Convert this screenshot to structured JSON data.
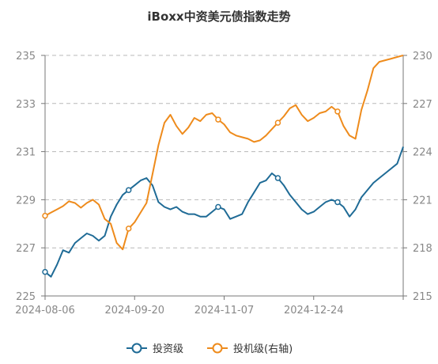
{
  "chart_data": {
    "type": "line",
    "title": "iBoxx中资美元债指数走势",
    "x_tick_labels": [
      "2024-08-06",
      "2024-09-20",
      "2024-11-07",
      "2024-12-24"
    ],
    "y_left_ticks": [
      225,
      227,
      229,
      231,
      233,
      235
    ],
    "y_right_ticks": [
      215,
      218,
      221,
      224,
      227,
      230
    ],
    "ylim_left": [
      225,
      235
    ],
    "ylim_right": [
      215,
      230
    ],
    "grid": "horizontal dashed",
    "legend_position": "bottom",
    "series": [
      {
        "name": "投资级",
        "axis": "left",
        "color": "#1f6b96",
        "x": [
          0,
          2,
          4,
          6,
          8,
          10,
          12,
          14,
          16,
          18,
          20,
          22,
          24,
          26,
          28,
          30,
          32,
          34,
          36,
          38,
          40,
          42,
          44,
          46,
          48,
          50,
          52,
          54,
          56,
          58,
          60,
          62,
          64,
          66,
          68,
          70,
          72,
          74,
          76,
          78,
          80,
          82,
          84,
          86,
          88,
          90,
          92,
          94,
          96,
          98,
          100,
          102,
          104,
          106,
          108,
          110,
          112,
          114,
          116,
          118,
          120
        ],
        "values": [
          226.0,
          225.8,
          226.3,
          226.9,
          226.8,
          227.2,
          227.4,
          227.6,
          227.5,
          227.3,
          227.5,
          228.3,
          228.8,
          229.2,
          229.4,
          229.6,
          229.8,
          229.9,
          229.6,
          228.9,
          228.7,
          228.6,
          228.7,
          228.5,
          228.4,
          228.4,
          228.3,
          228.3,
          228.5,
          228.7,
          228.6,
          228.2,
          228.3,
          228.4,
          228.9,
          229.3,
          229.7,
          229.8,
          230.1,
          229.9,
          229.6,
          229.2,
          228.9,
          228.6,
          228.4,
          228.5,
          228.7,
          228.9,
          229.0,
          228.9,
          228.7,
          228.3,
          228.6,
          229.1,
          229.4,
          229.7,
          229.9,
          230.1,
          230.3,
          230.5,
          231.2
        ]
      },
      {
        "name": "投机级(右轴)",
        "axis": "right",
        "color": "#ee8b1c",
        "x": [
          0,
          2,
          4,
          6,
          8,
          10,
          12,
          14,
          16,
          18,
          20,
          22,
          24,
          26,
          28,
          30,
          32,
          34,
          36,
          38,
          40,
          42,
          44,
          46,
          48,
          50,
          52,
          54,
          56,
          58,
          60,
          62,
          64,
          66,
          68,
          70,
          72,
          74,
          76,
          78,
          80,
          82,
          84,
          86,
          88,
          90,
          92,
          94,
          96,
          98,
          100,
          102,
          104,
          106,
          108,
          110,
          112,
          114,
          116,
          118,
          120
        ],
        "values": [
          220.0,
          220.2,
          220.4,
          220.6,
          220.9,
          220.8,
          220.5,
          220.8,
          221.0,
          220.7,
          219.8,
          219.5,
          218.3,
          217.9,
          219.2,
          219.6,
          220.2,
          220.8,
          222.6,
          224.4,
          225.8,
          226.3,
          225.6,
          225.1,
          225.5,
          226.1,
          225.9,
          226.3,
          226.4,
          226.0,
          225.7,
          225.2,
          225.0,
          224.9,
          224.8,
          224.6,
          224.7,
          225.0,
          225.4,
          225.8,
          226.2,
          226.7,
          226.9,
          226.3,
          225.9,
          226.1,
          226.4,
          226.5,
          226.8,
          226.5,
          225.6,
          225.0,
          224.8,
          226.6,
          227.8,
          229.2,
          229.6,
          229.7,
          229.8,
          229.9,
          230.0
        ]
      }
    ]
  }
}
